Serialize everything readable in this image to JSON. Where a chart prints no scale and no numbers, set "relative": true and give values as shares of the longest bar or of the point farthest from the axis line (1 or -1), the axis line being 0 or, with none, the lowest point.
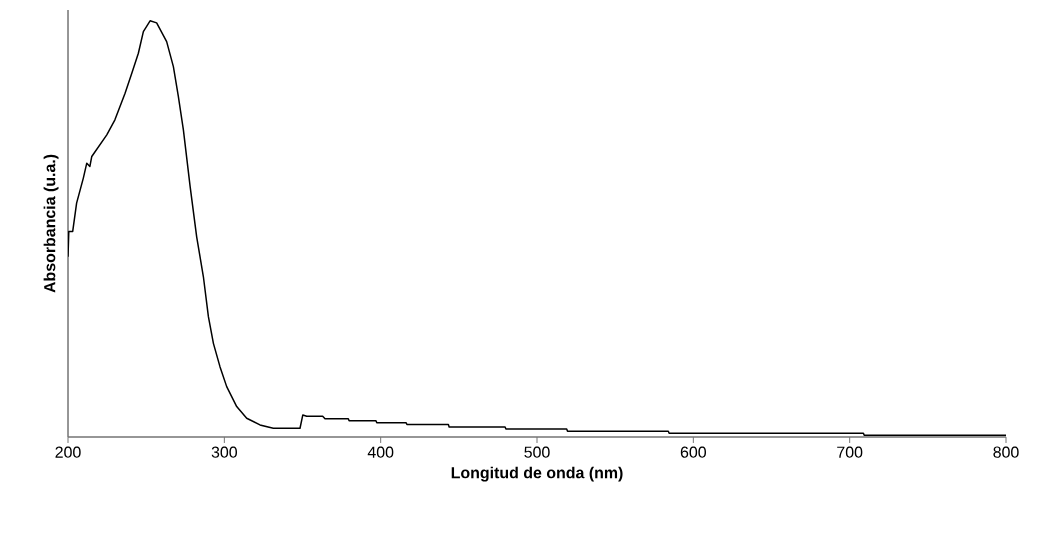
{
  "chart_data": {
    "type": "line",
    "relative": true,
    "xlabel": "Longitud de onda (nm)",
    "ylabel": "Absorbancia (u.a.)",
    "xlim": [
      200,
      800
    ],
    "xticks": [
      200,
      300,
      400,
      500,
      600,
      700,
      800
    ],
    "grid": false,
    "marker": "none",
    "line_style": "solid",
    "series": [
      {
        "color": "#000000",
        "x": [
          200,
          200.5,
          203,
          205.5,
          209.8,
          212,
          214,
          215.2,
          224.8,
          230,
          236.5,
          240.8,
          245,
          248.2,
          252.5,
          256.7,
          263.1,
          267.4,
          270.6,
          273.8,
          278.1,
          282.3,
          286.6,
          289.8,
          293,
          297.2,
          301.5,
          307.9,
          314.3,
          322.8,
          331.3,
          348.4,
          350.2,
          352.7,
          362.9,
          364.4,
          379.3,
          379.8,
          397,
          397.5,
          416.3,
          416.8,
          443.3,
          443.8,
          479.6,
          480.1,
          519,
          519.5,
          584,
          584.5,
          708.8,
          709.3,
          800
        ],
        "values": [
          0.433,
          0.494,
          0.494,
          0.562,
          0.622,
          0.658,
          0.65,
          0.674,
          0.726,
          0.762,
          0.826,
          0.874,
          0.922,
          0.974,
          1.0,
          0.995,
          0.95,
          0.89,
          0.818,
          0.738,
          0.602,
          0.481,
          0.385,
          0.289,
          0.225,
          0.169,
          0.121,
          0.073,
          0.045,
          0.029,
          0.021,
          0.021,
          0.053,
          0.05,
          0.05,
          0.044,
          0.044,
          0.039,
          0.039,
          0.034,
          0.034,
          0.03,
          0.03,
          0.024,
          0.024,
          0.019,
          0.019,
          0.014,
          0.014,
          0.009,
          0.009,
          0.004,
          0.004
        ]
      }
    ]
  }
}
